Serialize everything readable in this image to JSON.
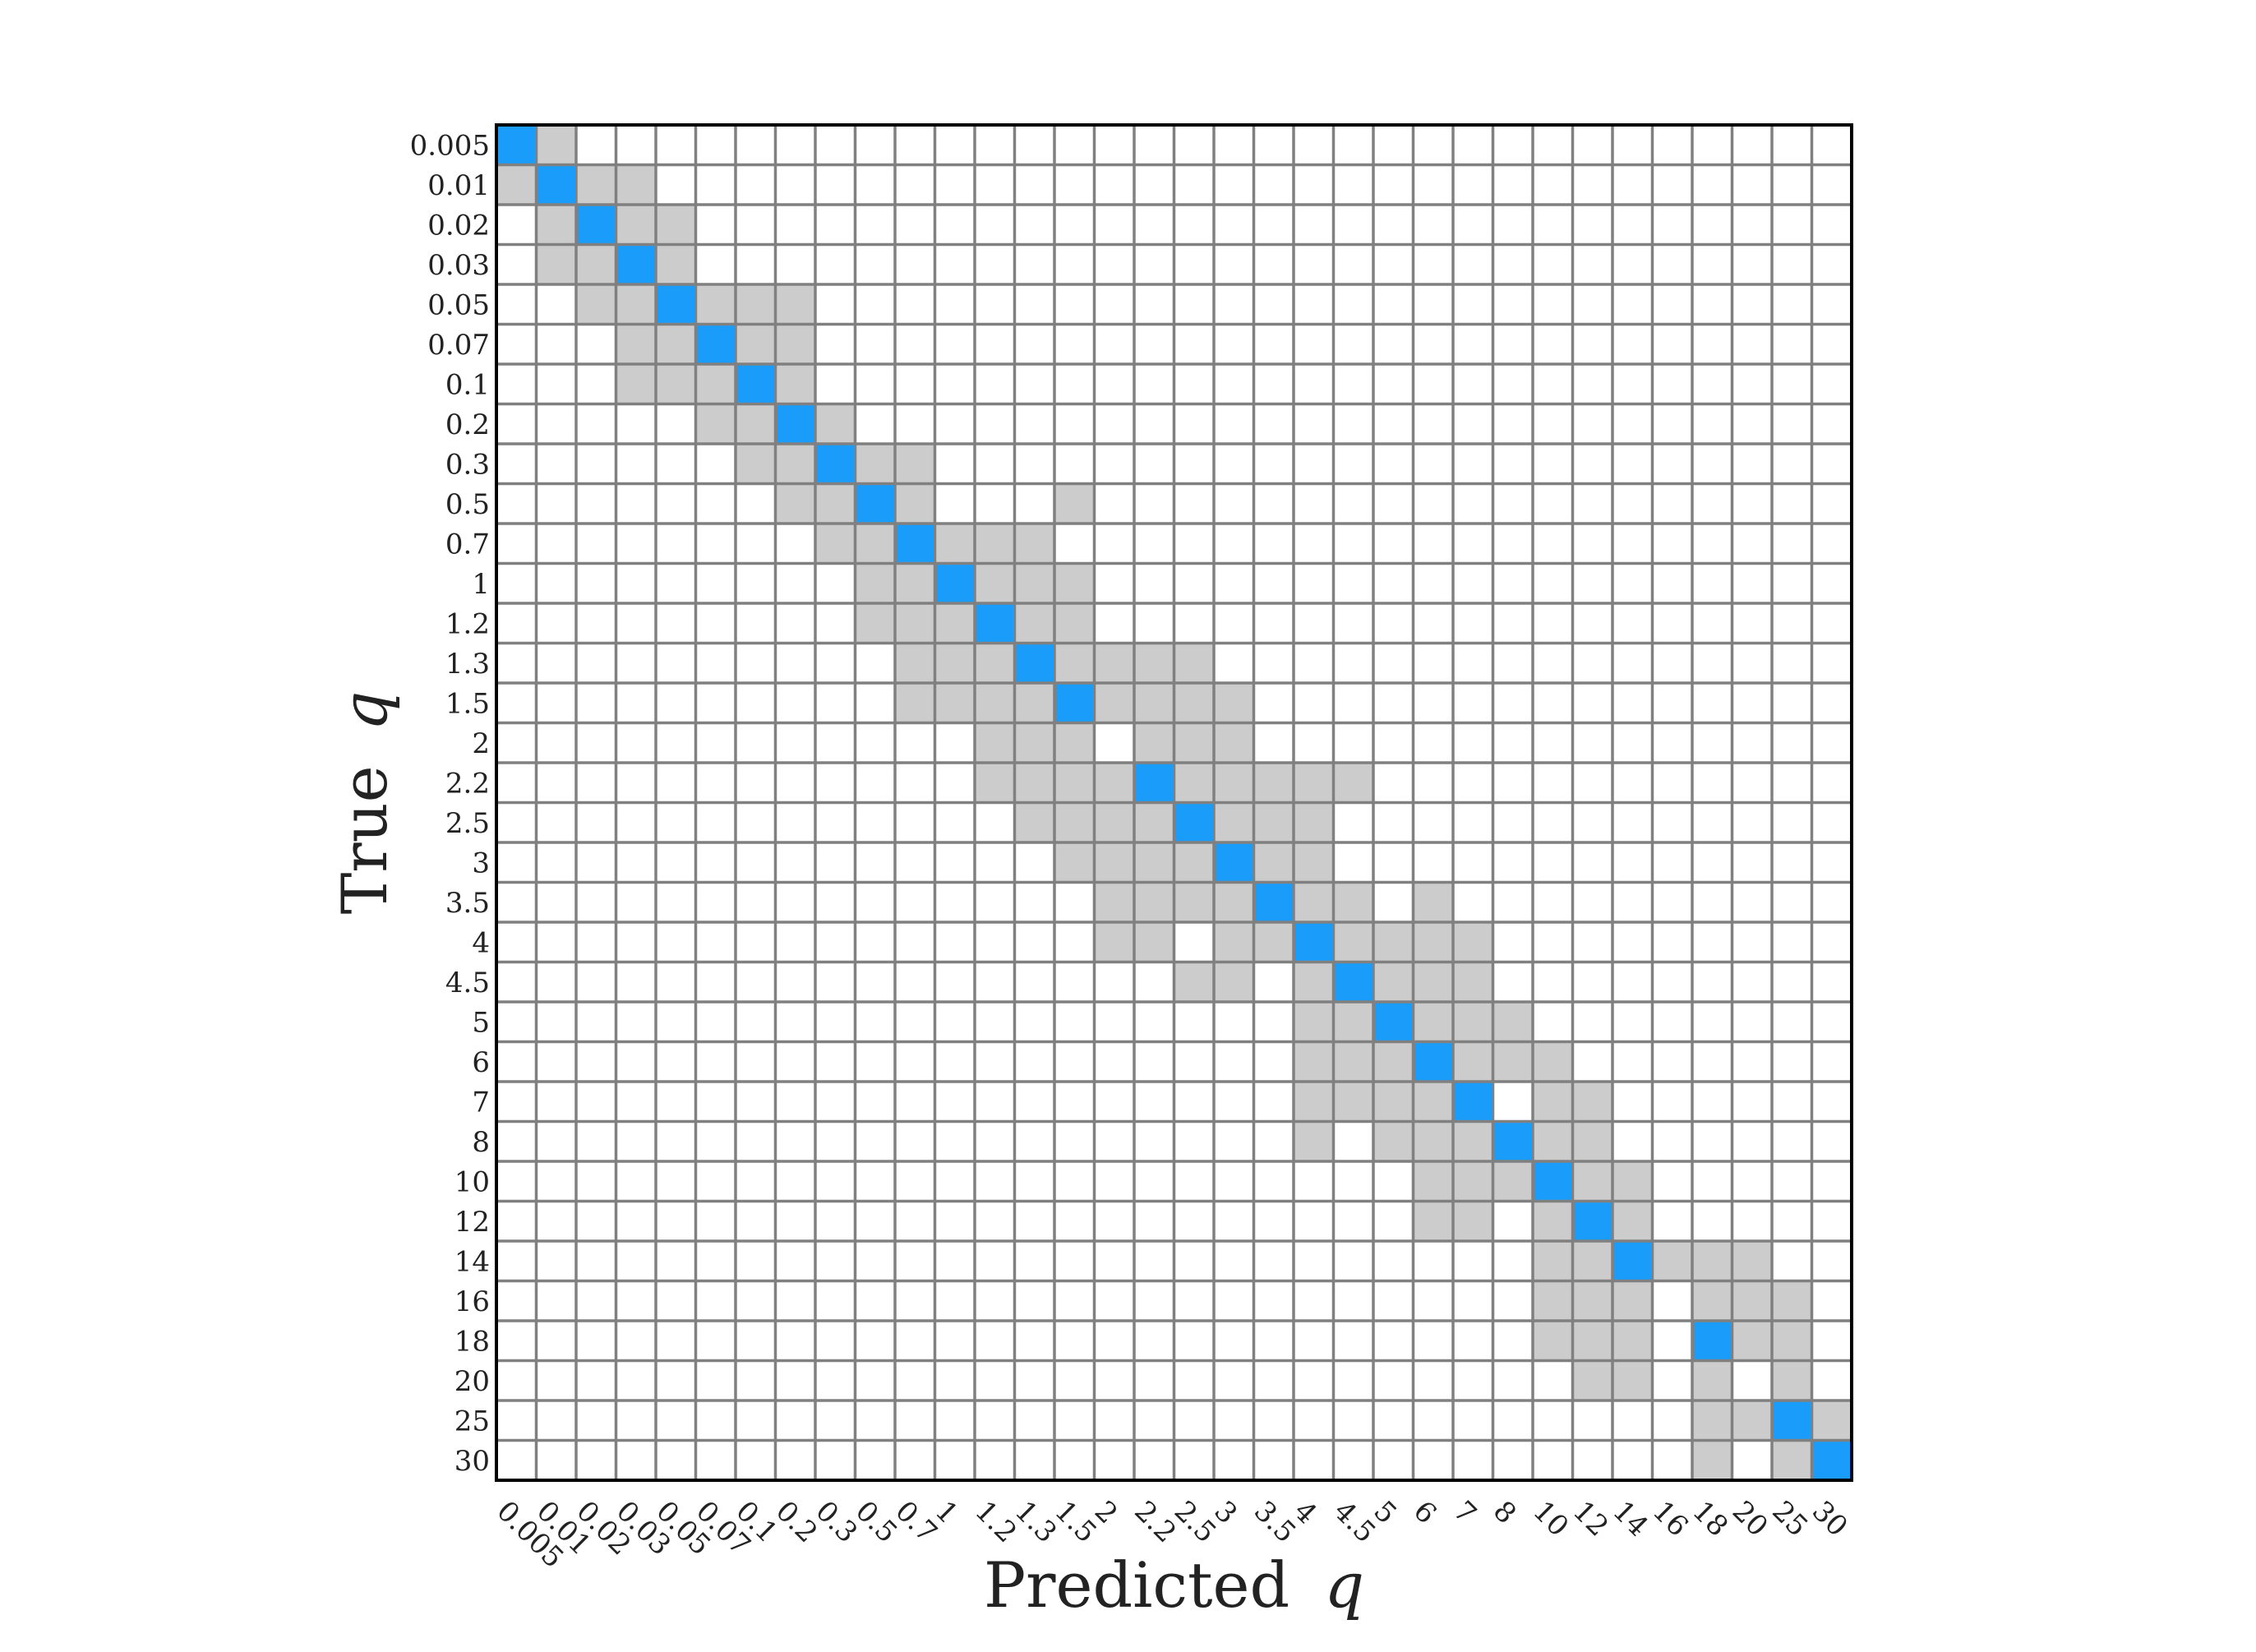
{
  "chart_data": {
    "type": "heatmap",
    "title": "",
    "xlabel": "Predicted",
    "ylabel": "True",
    "axis_symbol": "q",
    "categories": [
      "0.005",
      "0.01",
      "0.02",
      "0.03",
      "0.05",
      "0.07",
      "0.1",
      "0.2",
      "0.3",
      "0.5",
      "0.7",
      "1",
      "1.2",
      "1.3",
      "1.5",
      "2",
      "2.2",
      "2.5",
      "3",
      "3.5",
      "4",
      "4.5",
      "5",
      "6",
      "7",
      "8",
      "10",
      "12",
      "14",
      "16",
      "18",
      "20",
      "25",
      "30"
    ],
    "colors": {
      "diagonal": "#1a9dfa",
      "off_diagonal": "#cccccc",
      "empty": "#ffffff",
      "grid": "#808080",
      "frame": "#000000"
    },
    "diagonal_rows": [
      0,
      1,
      2,
      3,
      4,
      5,
      6,
      7,
      8,
      9,
      10,
      11,
      12,
      13,
      14,
      16,
      17,
      18,
      19,
      20,
      21,
      22,
      23,
      24,
      25,
      26,
      27,
      28,
      30,
      32,
      33
    ],
    "off_diagonal_cells": [
      [
        0,
        1
      ],
      [
        1,
        0
      ],
      [
        1,
        2
      ],
      [
        1,
        3
      ],
      [
        2,
        1
      ],
      [
        2,
        3
      ],
      [
        2,
        4
      ],
      [
        3,
        1
      ],
      [
        3,
        2
      ],
      [
        3,
        4
      ],
      [
        4,
        2
      ],
      [
        4,
        3
      ],
      [
        4,
        5
      ],
      [
        4,
        6
      ],
      [
        4,
        7
      ],
      [
        5,
        3
      ],
      [
        5,
        4
      ],
      [
        5,
        6
      ],
      [
        5,
        7
      ],
      [
        6,
        3
      ],
      [
        6,
        4
      ],
      [
        6,
        5
      ],
      [
        6,
        7
      ],
      [
        7,
        5
      ],
      [
        7,
        6
      ],
      [
        7,
        8
      ],
      [
        8,
        6
      ],
      [
        8,
        7
      ],
      [
        8,
        9
      ],
      [
        8,
        10
      ],
      [
        9,
        7
      ],
      [
        9,
        8
      ],
      [
        9,
        10
      ],
      [
        9,
        14
      ],
      [
        10,
        8
      ],
      [
        10,
        9
      ],
      [
        10,
        11
      ],
      [
        10,
        12
      ],
      [
        10,
        13
      ],
      [
        11,
        9
      ],
      [
        11,
        10
      ],
      [
        11,
        12
      ],
      [
        11,
        13
      ],
      [
        11,
        14
      ],
      [
        12,
        9
      ],
      [
        12,
        10
      ],
      [
        12,
        11
      ],
      [
        12,
        13
      ],
      [
        12,
        14
      ],
      [
        13,
        10
      ],
      [
        13,
        11
      ],
      [
        13,
        12
      ],
      [
        13,
        14
      ],
      [
        13,
        15
      ],
      [
        13,
        16
      ],
      [
        13,
        17
      ],
      [
        14,
        10
      ],
      [
        14,
        11
      ],
      [
        14,
        12
      ],
      [
        14,
        13
      ],
      [
        14,
        15
      ],
      [
        14,
        16
      ],
      [
        14,
        17
      ],
      [
        14,
        18
      ],
      [
        15,
        12
      ],
      [
        15,
        13
      ],
      [
        15,
        14
      ],
      [
        15,
        16
      ],
      [
        15,
        17
      ],
      [
        15,
        18
      ],
      [
        16,
        12
      ],
      [
        16,
        13
      ],
      [
        16,
        14
      ],
      [
        16,
        15
      ],
      [
        16,
        17
      ],
      [
        16,
        18
      ],
      [
        16,
        19
      ],
      [
        16,
        20
      ],
      [
        16,
        21
      ],
      [
        17,
        13
      ],
      [
        17,
        14
      ],
      [
        17,
        15
      ],
      [
        17,
        16
      ],
      [
        17,
        18
      ],
      [
        17,
        19
      ],
      [
        17,
        20
      ],
      [
        18,
        14
      ],
      [
        18,
        15
      ],
      [
        18,
        16
      ],
      [
        18,
        17
      ],
      [
        18,
        19
      ],
      [
        18,
        20
      ],
      [
        19,
        15
      ],
      [
        19,
        16
      ],
      [
        19,
        17
      ],
      [
        19,
        18
      ],
      [
        19,
        20
      ],
      [
        19,
        21
      ],
      [
        19,
        23
      ],
      [
        20,
        15
      ],
      [
        20,
        16
      ],
      [
        20,
        18
      ],
      [
        20,
        19
      ],
      [
        20,
        21
      ],
      [
        20,
        22
      ],
      [
        20,
        23
      ],
      [
        20,
        24
      ],
      [
        21,
        17
      ],
      [
        21,
        18
      ],
      [
        21,
        20
      ],
      [
        21,
        22
      ],
      [
        21,
        23
      ],
      [
        21,
        24
      ],
      [
        22,
        20
      ],
      [
        22,
        21
      ],
      [
        22,
        23
      ],
      [
        22,
        24
      ],
      [
        22,
        25
      ],
      [
        23,
        20
      ],
      [
        23,
        21
      ],
      [
        23,
        22
      ],
      [
        23,
        24
      ],
      [
        23,
        25
      ],
      [
        23,
        26
      ],
      [
        24,
        20
      ],
      [
        24,
        21
      ],
      [
        24,
        22
      ],
      [
        24,
        23
      ],
      [
        24,
        26
      ],
      [
        24,
        27
      ],
      [
        25,
        20
      ],
      [
        25,
        22
      ],
      [
        25,
        23
      ],
      [
        25,
        24
      ],
      [
        25,
        26
      ],
      [
        25,
        27
      ],
      [
        26,
        23
      ],
      [
        26,
        24
      ],
      [
        26,
        25
      ],
      [
        26,
        27
      ],
      [
        26,
        28
      ],
      [
        27,
        23
      ],
      [
        27,
        24
      ],
      [
        27,
        26
      ],
      [
        27,
        28
      ],
      [
        28,
        26
      ],
      [
        28,
        27
      ],
      [
        28,
        29
      ],
      [
        28,
        30
      ],
      [
        28,
        31
      ],
      [
        29,
        26
      ],
      [
        29,
        27
      ],
      [
        29,
        28
      ],
      [
        29,
        30
      ],
      [
        29,
        31
      ],
      [
        29,
        32
      ],
      [
        30,
        26
      ],
      [
        30,
        27
      ],
      [
        30,
        28
      ],
      [
        30,
        31
      ],
      [
        30,
        32
      ],
      [
        31,
        27
      ],
      [
        31,
        28
      ],
      [
        31,
        30
      ],
      [
        31,
        32
      ],
      [
        32,
        30
      ],
      [
        32,
        31
      ],
      [
        32,
        33
      ],
      [
        33,
        30
      ],
      [
        33,
        32
      ]
    ]
  }
}
